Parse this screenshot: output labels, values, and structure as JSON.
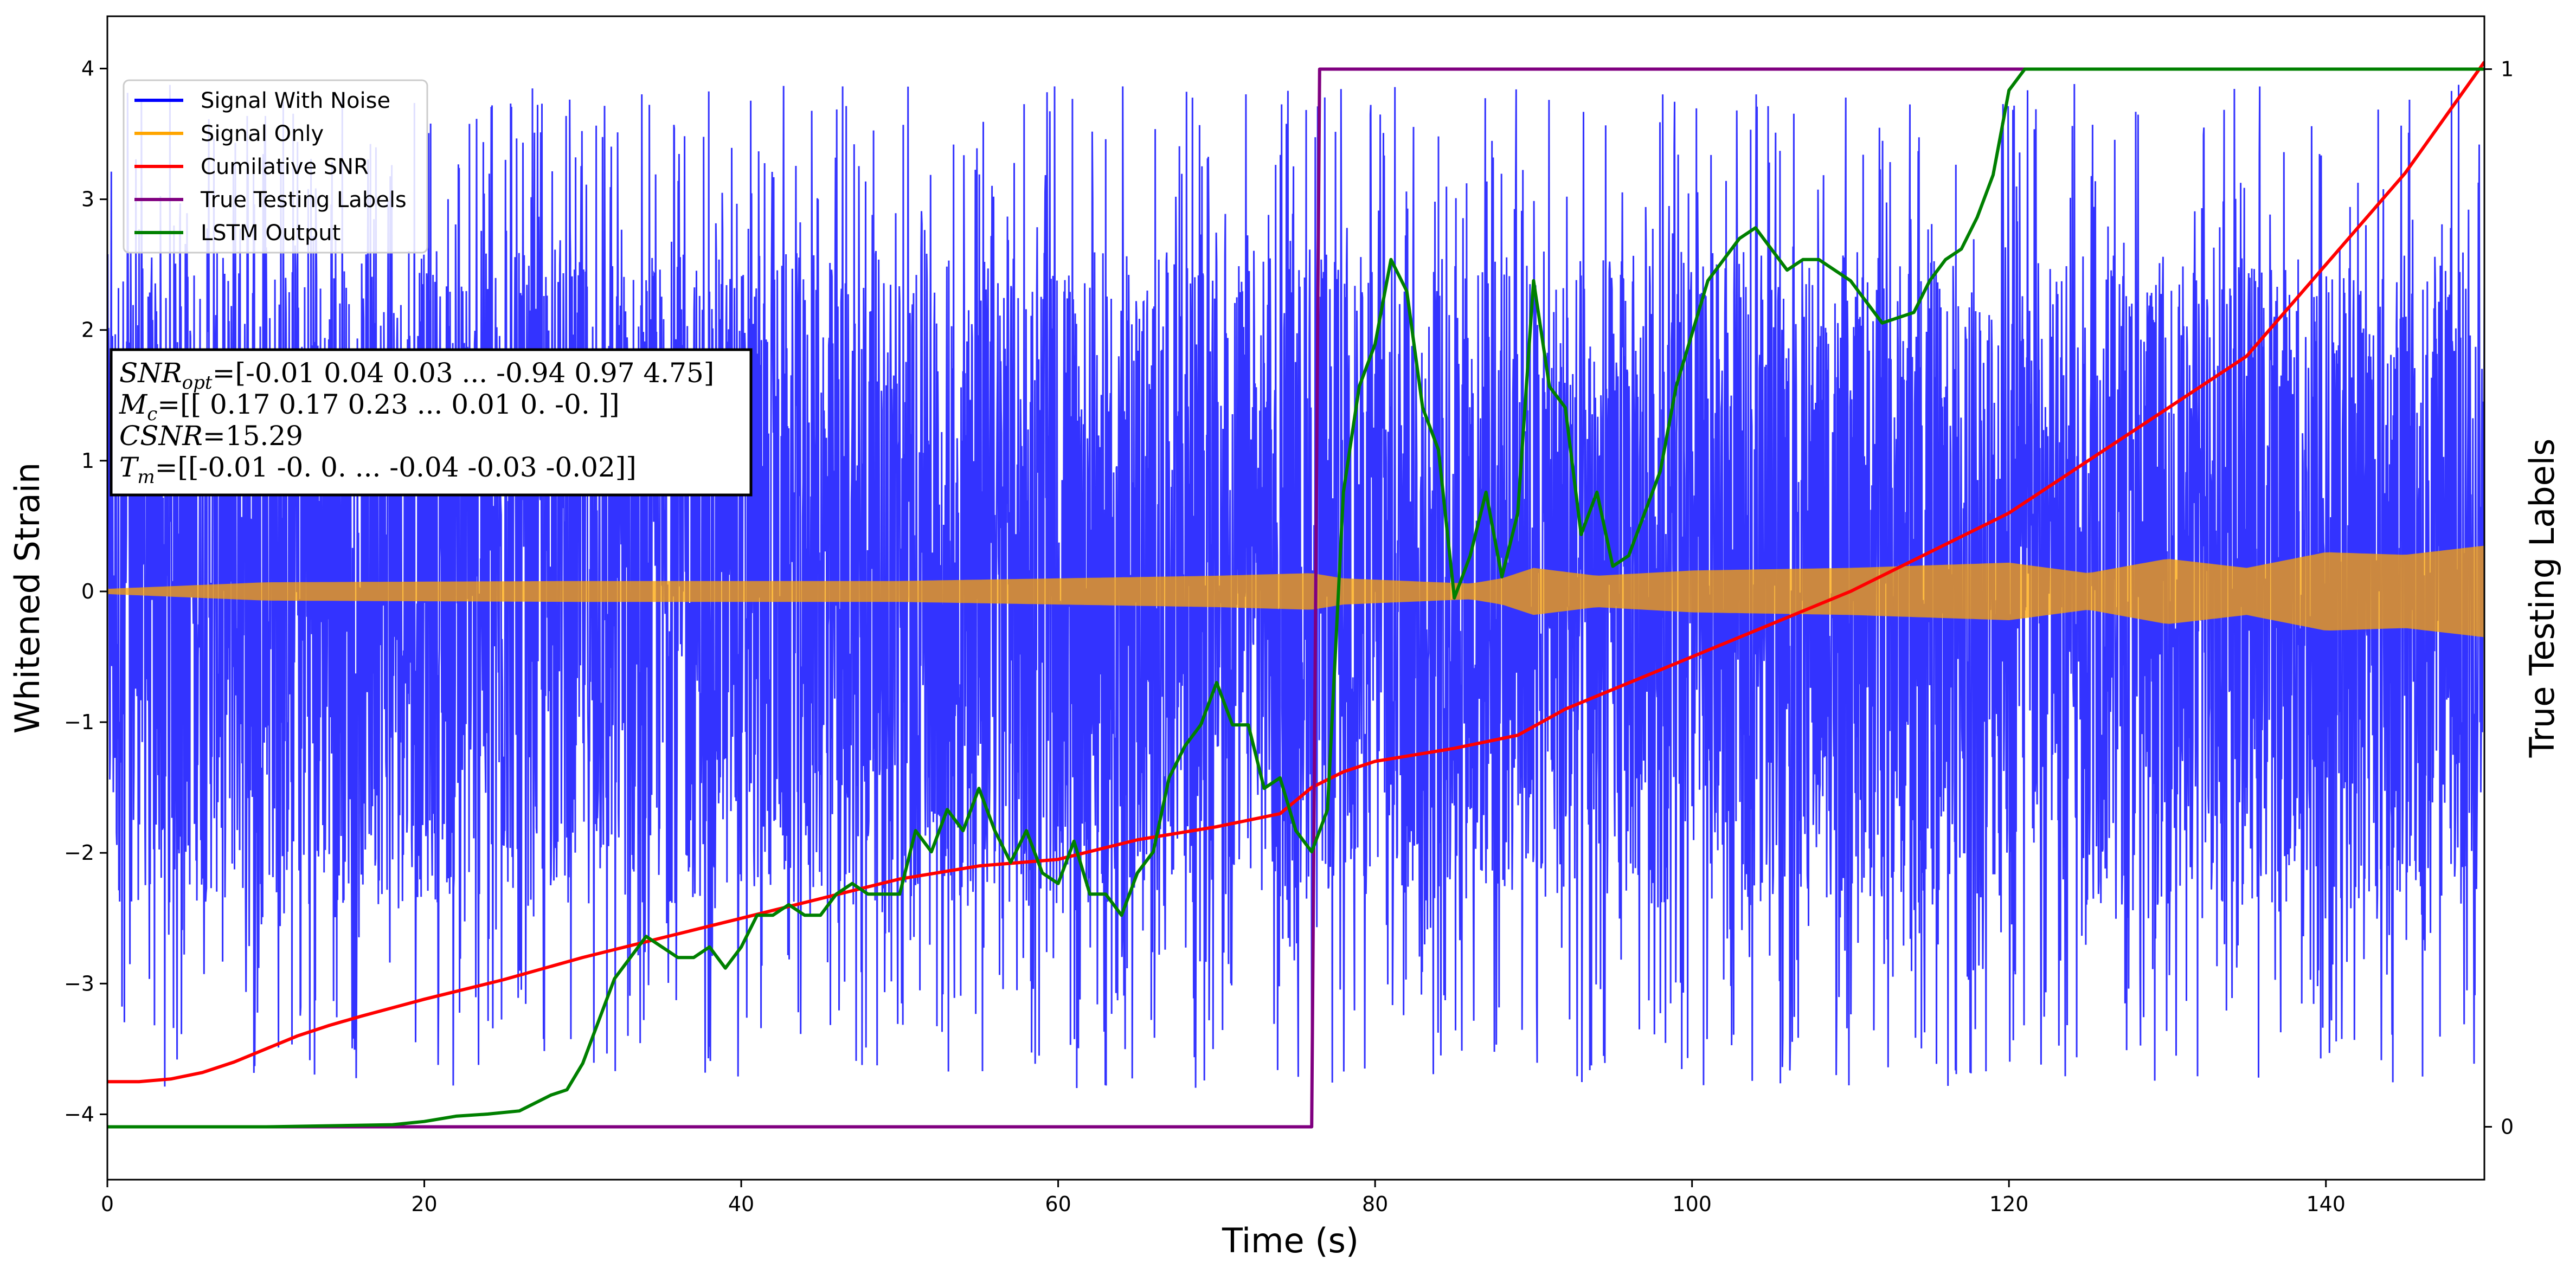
{
  "chart_data": {
    "type": "line",
    "title": "",
    "xlabel": "Time (s)",
    "ylabel": "Whitened Strain",
    "y2label": "True Testing Labels",
    "xlim": [
      0,
      150
    ],
    "ylim": [
      -4.5,
      4.4
    ],
    "y2lim": [
      -0.05,
      1.05
    ],
    "x_ticks": [
      "0",
      "20",
      "40",
      "60",
      "80",
      "100",
      "120",
      "140"
    ],
    "y_ticks": [
      "−4",
      "−3",
      "−2",
      "−1",
      "0",
      "1",
      "2",
      "3",
      "4"
    ],
    "y2_ticks": [
      "0",
      "1"
    ],
    "grid": false,
    "legend_position": "upper-left",
    "series": [
      {
        "name": "Signal With Noise",
        "color": "#0000ff",
        "axis": "left",
        "kind": "noise",
        "band": [
          -2.4,
          2.6
        ],
        "peaks": [
          -4.1,
          4.2
        ]
      },
      {
        "name": "Signal Only",
        "color": "#ffa500",
        "axis": "left",
        "kind": "envelope",
        "x": [
          0,
          10,
          30,
          50,
          60,
          70,
          76,
          78,
          82,
          86,
          88,
          90,
          94,
          100,
          110,
          120,
          125,
          130,
          135,
          140,
          145,
          150
        ],
        "amp": [
          0.02,
          0.07,
          0.08,
          0.08,
          0.1,
          0.12,
          0.14,
          0.1,
          0.08,
          0.06,
          0.1,
          0.18,
          0.12,
          0.16,
          0.18,
          0.22,
          0.14,
          0.25,
          0.18,
          0.3,
          0.28,
          0.35
        ]
      },
      {
        "name": "Cumilative SNR",
        "color": "#ff0000",
        "axis": "left",
        "x": [
          0,
          2,
          4,
          6,
          8,
          10,
          12,
          14,
          16,
          20,
          25,
          30,
          35,
          40,
          45,
          50,
          55,
          60,
          65,
          70,
          74,
          76,
          78,
          80,
          85,
          89,
          92,
          96,
          100,
          105,
          110,
          115,
          120,
          125,
          130,
          135,
          140,
          145,
          150
        ],
        "values": [
          -3.75,
          -3.75,
          -3.73,
          -3.68,
          -3.6,
          -3.5,
          -3.4,
          -3.32,
          -3.25,
          -3.12,
          -2.97,
          -2.8,
          -2.65,
          -2.5,
          -2.35,
          -2.2,
          -2.1,
          -2.05,
          -1.9,
          -1.8,
          -1.7,
          -1.5,
          -1.38,
          -1.3,
          -1.2,
          -1.1,
          -0.9,
          -0.7,
          -0.5,
          -0.25,
          0.0,
          0.3,
          0.6,
          1.0,
          1.4,
          1.8,
          2.5,
          3.2,
          4.05
        ]
      },
      {
        "name": "True Testing Labels",
        "color": "#800080",
        "axis": "right",
        "x": [
          0,
          76,
          76.5,
          150
        ],
        "values": [
          0,
          0,
          1,
          1
        ]
      },
      {
        "name": "LSTM Output",
        "color": "#008000",
        "axis": "right",
        "x": [
          0,
          10,
          18,
          20,
          22,
          24,
          26,
          28,
          29,
          30,
          31,
          32,
          33,
          34,
          35,
          36,
          37,
          38,
          39,
          40,
          41,
          42,
          43,
          44,
          45,
          46,
          47,
          48,
          49,
          50,
          51,
          52,
          53,
          54,
          55,
          56,
          57,
          58,
          59,
          60,
          61,
          62,
          63,
          64,
          65,
          66,
          67,
          68,
          69,
          70,
          71,
          72,
          73,
          74,
          75,
          76,
          77,
          78,
          79,
          80,
          81,
          82,
          83,
          84,
          85,
          86,
          87,
          88,
          89,
          90,
          91,
          92,
          93,
          94,
          95,
          96,
          97,
          98,
          99,
          100,
          101,
          102,
          103,
          104,
          105,
          106,
          107,
          108,
          110,
          112,
          114,
          115,
          116,
          117,
          118,
          119,
          120,
          121,
          122,
          125,
          130,
          140,
          150
        ],
        "values": [
          0,
          0,
          0.002,
          0.005,
          0.01,
          0.012,
          0.015,
          0.03,
          0.035,
          0.06,
          0.1,
          0.14,
          0.16,
          0.18,
          0.17,
          0.16,
          0.16,
          0.17,
          0.15,
          0.17,
          0.2,
          0.2,
          0.21,
          0.2,
          0.2,
          0.22,
          0.23,
          0.22,
          0.22,
          0.22,
          0.28,
          0.26,
          0.3,
          0.28,
          0.32,
          0.28,
          0.25,
          0.28,
          0.24,
          0.23,
          0.27,
          0.22,
          0.22,
          0.2,
          0.24,
          0.26,
          0.33,
          0.36,
          0.38,
          0.42,
          0.38,
          0.38,
          0.32,
          0.33,
          0.28,
          0.26,
          0.3,
          0.6,
          0.7,
          0.74,
          0.82,
          0.79,
          0.68,
          0.64,
          0.5,
          0.54,
          0.6,
          0.52,
          0.58,
          0.8,
          0.7,
          0.68,
          0.56,
          0.6,
          0.53,
          0.54,
          0.58,
          0.62,
          0.7,
          0.75,
          0.8,
          0.82,
          0.84,
          0.85,
          0.83,
          0.81,
          0.82,
          0.82,
          0.8,
          0.76,
          0.77,
          0.8,
          0.82,
          0.83,
          0.86,
          0.9,
          0.98,
          1.0,
          1.0,
          1.0,
          1.0,
          1.0,
          1.0
        ]
      }
    ],
    "annotation": [
      {
        "label": "SNR",
        "sub": "opt",
        "value": "=[-0.01  0.04  0.03 ... -0.94  0.97  4.75]"
      },
      {
        "label": "M",
        "sub": "c",
        "value": "=[[ 0.17  0.17  0.23 ...  0.01  0.   -0.  ]]"
      },
      {
        "label": "CSNR",
        "sub": "",
        "value": "=15.29"
      },
      {
        "label": "T",
        "sub": "m",
        "value": "=[[-0.01 -0.    0.   ... -0.04 -0.03 -0.02]]"
      }
    ]
  }
}
